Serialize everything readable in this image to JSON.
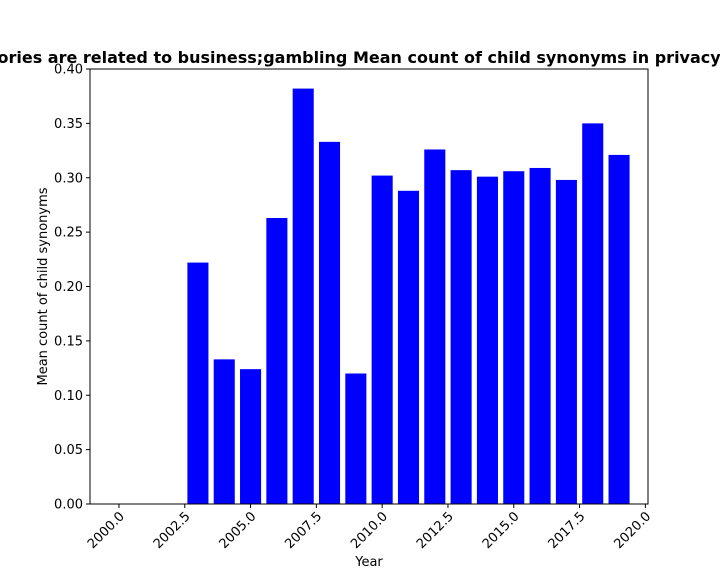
{
  "chart_data": {
    "type": "bar",
    "title": "Categories are related to business;gambling Mean count of child synonyms in privacy policies",
    "xlabel": "Year",
    "ylabel": "Mean count of child synonyms",
    "x": [
      2003,
      2004,
      2005,
      2006,
      2007,
      2008,
      2009,
      2010,
      2011,
      2012,
      2013,
      2014,
      2015,
      2016,
      2017,
      2018,
      2019
    ],
    "values": [
      0.222,
      0.133,
      0.124,
      0.263,
      0.382,
      0.333,
      0.12,
      0.302,
      0.288,
      0.326,
      0.307,
      0.301,
      0.306,
      0.309,
      0.298,
      0.35,
      0.321
    ],
    "xlim": [
      1998.9,
      2020.1
    ],
    "ylim": [
      0,
      0.4
    ],
    "xticks": [
      2000.0,
      2002.5,
      2005.0,
      2007.5,
      2010.0,
      2012.5,
      2015.0,
      2017.5,
      2020.0
    ],
    "xtick_labels": [
      "2000.0",
      "2002.5",
      "2005.0",
      "2007.5",
      "2010.0",
      "2012.5",
      "2015.0",
      "2017.5",
      "2020.0"
    ],
    "yticks": [
      0.0,
      0.05,
      0.1,
      0.15,
      0.2,
      0.25,
      0.3,
      0.35,
      0.4
    ],
    "ytick_labels": [
      "0.00",
      "0.05",
      "0.10",
      "0.15",
      "0.20",
      "0.25",
      "0.30",
      "0.35",
      "0.40"
    ],
    "bar_color": "#0000ff",
    "grid": false,
    "legend": "none"
  }
}
